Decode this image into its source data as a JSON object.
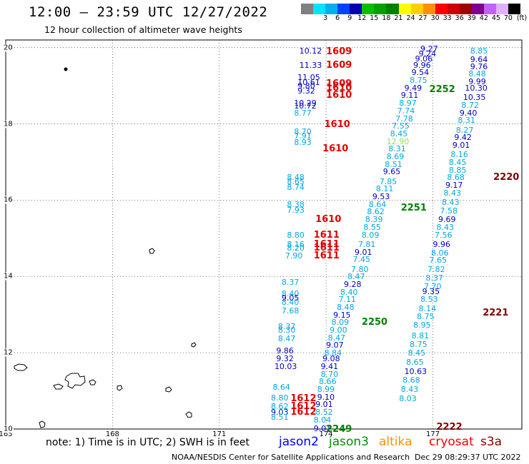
{
  "header": {
    "title": "12:00 – 23:59 UTC 12/27/2022",
    "subtitle": "12 hour collection of altimeter wave heights"
  },
  "scale": {
    "unit": "(ft)",
    "bins": [
      {
        "label": "",
        "color": "#808080"
      },
      {
        "label": "3",
        "color": "#00e5ff"
      },
      {
        "label": "6",
        "color": "#00b0e8"
      },
      {
        "label": "9",
        "color": "#0040ff"
      },
      {
        "label": "12",
        "color": "#0000b0"
      },
      {
        "label": "15",
        "color": "#00c000"
      },
      {
        "label": "18",
        "color": "#00a000"
      },
      {
        "label": "21",
        "color": "#008000"
      },
      {
        "label": "24",
        "color": "#ffff00"
      },
      {
        "label": "27",
        "color": "#ffd000"
      },
      {
        "label": "30",
        "color": "#ff9000"
      },
      {
        "label": "33",
        "color": "#ff0000"
      },
      {
        "label": "36",
        "color": "#d00000"
      },
      {
        "label": "39",
        "color": "#a00000"
      },
      {
        "label": "42",
        "color": "#800090"
      },
      {
        "label": "45",
        "color": "#c060ff"
      },
      {
        "label": "70",
        "color": "#e0b0ff"
      },
      {
        "label": "",
        "color": "#000000"
      }
    ]
  },
  "axes": {
    "lon_ticks": [
      "165",
      "168",
      "171",
      "174",
      "177"
    ],
    "lat_ticks": [
      "20",
      "18",
      "16",
      "14",
      "12",
      "10"
    ]
  },
  "footer": {
    "note": "note: 1) Time is in UTC; 2) SWH is in feet",
    "credit": "NOAA/NESDIS Center for Satellite Applications and Research",
    "stamp": "Dec 29 08:29:37 UTC 2022"
  },
  "satellites": [
    {
      "name": "jason2",
      "color": "#0000ff"
    },
    {
      "name": "jason3",
      "color": "#009000"
    },
    {
      "name": "altika",
      "color": "#ff9000"
    },
    {
      "name": "cryosat",
      "color": "#ff0000"
    },
    {
      "name": "s3a",
      "color": "#8b0000"
    }
  ],
  "track_labels": [
    {
      "text": "1609",
      "color": "#e00000",
      "lon": 174.0,
      "lat": 19.9
    },
    {
      "text": "1609",
      "color": "#e00000",
      "lon": 174.0,
      "lat": 19.55
    },
    {
      "text": "1609",
      "color": "#e00000",
      "lon": 174.0,
      "lat": 19.05
    },
    {
      "text": "1610",
      "color": "#e00000",
      "lon": 174.0,
      "lat": 18.95
    },
    {
      "text": "1610",
      "color": "#e00000",
      "lon": 174.0,
      "lat": 18.75
    },
    {
      "text": "1610",
      "color": "#e00000",
      "lon": 173.95,
      "lat": 18.0
    },
    {
      "text": "1610",
      "color": "#e00000",
      "lon": 173.9,
      "lat": 17.35
    },
    {
      "text": "1610",
      "color": "#e00000",
      "lon": 173.7,
      "lat": 15.5
    },
    {
      "text": "1611",
      "color": "#e00000",
      "lon": 173.65,
      "lat": 15.1
    },
    {
      "text": "1611",
      "color": "#e00000",
      "lon": 173.65,
      "lat": 14.85
    },
    {
      "text": "1611",
      "color": "#e00000",
      "lon": 173.65,
      "lat": 14.75
    },
    {
      "text": "1611",
      "color": "#e00000",
      "lon": 173.65,
      "lat": 14.55
    },
    {
      "text": "1612",
      "color": "#e00000",
      "lon": 173.0,
      "lat": 10.8
    },
    {
      "text": "1612",
      "color": "#e00000",
      "lon": 173.0,
      "lat": 10.6
    },
    {
      "text": "1612",
      "color": "#e00000",
      "lon": 173.0,
      "lat": 10.45
    },
    {
      "text": "2252",
      "color": "#008000",
      "lon": 176.9,
      "lat": 18.9
    },
    {
      "text": "2251",
      "color": "#008000",
      "lon": 176.1,
      "lat": 15.8
    },
    {
      "text": "2250",
      "color": "#008000",
      "lon": 175.0,
      "lat": 12.8
    },
    {
      "text": "2249",
      "color": "#008000",
      "lon": 174.0,
      "lat": 10.0
    },
    {
      "text": "2220",
      "color": "#800000",
      "lon": 178.7,
      "lat": 16.6
    },
    {
      "text": "2221",
      "color": "#800000",
      "lon": 178.4,
      "lat": 13.05
    },
    {
      "text": "2222",
      "color": "#800000",
      "lon": 177.1,
      "lat": 10.05
    }
  ],
  "observations": [
    {
      "v": "10.12",
      "c": "#0000c0",
      "lon": 173.25,
      "lat": 19.92
    },
    {
      "v": "11.33",
      "c": "#0000c0",
      "lon": 173.25,
      "lat": 19.55
    },
    {
      "v": "11.05",
      "c": "#0000c0",
      "lon": 173.2,
      "lat": 19.22
    },
    {
      "v": "10.61",
      "c": "#0000c0",
      "lon": 173.2,
      "lat": 19.1
    },
    {
      "v": "9.80",
      "c": "#0000c0",
      "lon": 173.2,
      "lat": 19.0
    },
    {
      "v": "9.32",
      "c": "#0000c0",
      "lon": 173.2,
      "lat": 18.87
    },
    {
      "v": "10.29",
      "c": "#0000c0",
      "lon": 173.1,
      "lat": 18.55
    },
    {
      "v": "10.72",
      "c": "#0000c0",
      "lon": 173.1,
      "lat": 18.47
    },
    {
      "v": "8.77",
      "c": "#00a8e0",
      "lon": 173.1,
      "lat": 18.3
    },
    {
      "v": "8.70",
      "c": "#00a8e0",
      "lon": 173.1,
      "lat": 17.8
    },
    {
      "v": "7.91",
      "c": "#00a8e0",
      "lon": 173.1,
      "lat": 17.7
    },
    {
      "v": "8.93",
      "c": "#00a8e0",
      "lon": 173.1,
      "lat": 17.52
    },
    {
      "v": "8.48",
      "c": "#00a8e0",
      "lon": 172.9,
      "lat": 16.6
    },
    {
      "v": "8.65",
      "c": "#00a8e0",
      "lon": 172.9,
      "lat": 16.5
    },
    {
      "v": "8.74",
      "c": "#00a8e0",
      "lon": 172.9,
      "lat": 16.35
    },
    {
      "v": "8.38",
      "c": "#00a8e0",
      "lon": 172.9,
      "lat": 15.9
    },
    {
      "v": "7.93",
      "c": "#00a8e0",
      "lon": 172.9,
      "lat": 15.75
    },
    {
      "v": "8.80",
      "c": "#00a8e0",
      "lon": 172.9,
      "lat": 15.1
    },
    {
      "v": "8.16",
      "c": "#00a8e0",
      "lon": 172.9,
      "lat": 14.85
    },
    {
      "v": "8.20",
      "c": "#00a8e0",
      "lon": 172.9,
      "lat": 14.75
    },
    {
      "v": "7.90",
      "c": "#00a8e0",
      "lon": 172.85,
      "lat": 14.55
    },
    {
      "v": "8.37",
      "c": "#00a8e0",
      "lon": 172.75,
      "lat": 13.85
    },
    {
      "v": "8.40",
      "c": "#00a8e0",
      "lon": 172.75,
      "lat": 13.55
    },
    {
      "v": "9.05",
      "c": "#0000c0",
      "lon": 172.75,
      "lat": 13.45
    },
    {
      "v": "8.40",
      "c": "#00a8e0",
      "lon": 172.75,
      "lat": 13.33
    },
    {
      "v": "7.68",
      "c": "#00a8e0",
      "lon": 172.75,
      "lat": 13.1
    },
    {
      "v": "8.37",
      "c": "#00a8e0",
      "lon": 172.65,
      "lat": 12.7
    },
    {
      "v": "8.30",
      "c": "#00a8e0",
      "lon": 172.65,
      "lat": 12.6
    },
    {
      "v": "8.47",
      "c": "#00a8e0",
      "lon": 172.65,
      "lat": 12.38
    },
    {
      "v": "9.86",
      "c": "#0000c0",
      "lon": 172.6,
      "lat": 12.05
    },
    {
      "v": "9.32",
      "c": "#0000c0",
      "lon": 172.6,
      "lat": 11.85
    },
    {
      "v": "10.03",
      "c": "#0000c0",
      "lon": 172.55,
      "lat": 11.65
    },
    {
      "v": "8.64",
      "c": "#00a8e0",
      "lon": 172.5,
      "lat": 11.1
    },
    {
      "v": "8.80",
      "c": "#00a8e0",
      "lon": 172.45,
      "lat": 10.82
    },
    {
      "v": "8.62",
      "c": "#00a8e0",
      "lon": 172.45,
      "lat": 10.6
    },
    {
      "v": "9.03",
      "c": "#0000c0",
      "lon": 172.45,
      "lat": 10.45
    },
    {
      "v": "8.51",
      "c": "#00a8e0",
      "lon": 172.45,
      "lat": 10.32
    },
    {
      "v": "9.01",
      "c": "#0000c0",
      "lon": 173.65,
      "lat": 10.02
    },
    {
      "v": "8.04",
      "c": "#00a8e0",
      "lon": 173.65,
      "lat": 10.25
    },
    {
      "v": "8.52",
      "c": "#00a8e0",
      "lon": 173.7,
      "lat": 10.45
    },
    {
      "v": "9.01",
      "c": "#0000c0",
      "lon": 173.7,
      "lat": 10.65
    },
    {
      "v": "9.10",
      "c": "#0000c0",
      "lon": 173.75,
      "lat": 10.85
    },
    {
      "v": "8.99",
      "c": "#00a8e0",
      "lon": 173.75,
      "lat": 11.05
    },
    {
      "v": "8.66",
      "c": "#00a8e0",
      "lon": 173.8,
      "lat": 11.25
    },
    {
      "v": "8.70",
      "c": "#00a8e0",
      "lon": 173.85,
      "lat": 11.45
    },
    {
      "v": "9.41",
      "c": "#0000c0",
      "lon": 173.85,
      "lat": 11.65
    },
    {
      "v": "9.08",
      "c": "#0000c0",
      "lon": 173.9,
      "lat": 11.85
    },
    {
      "v": "8.84",
      "c": "#00a8e0",
      "lon": 173.95,
      "lat": 12.0
    },
    {
      "v": "9.07",
      "c": "#0000c0",
      "lon": 174.0,
      "lat": 12.2
    },
    {
      "v": "8.47",
      "c": "#00a8e0",
      "lon": 174.05,
      "lat": 12.4
    },
    {
      "v": "9.00",
      "c": "#00a8e0",
      "lon": 174.1,
      "lat": 12.6
    },
    {
      "v": "8.09",
      "c": "#00a8e0",
      "lon": 174.15,
      "lat": 12.8
    },
    {
      "v": "9.15",
      "c": "#0000c0",
      "lon": 174.2,
      "lat": 13.0
    },
    {
      "v": "8.48",
      "c": "#00a8e0",
      "lon": 174.3,
      "lat": 13.2
    },
    {
      "v": "7.11",
      "c": "#00a8e0",
      "lon": 174.35,
      "lat": 13.4
    },
    {
      "v": "8.40",
      "c": "#00a8e0",
      "lon": 174.4,
      "lat": 13.6
    },
    {
      "v": "9.28",
      "c": "#0000c0",
      "lon": 174.5,
      "lat": 13.8
    },
    {
      "v": "8.47",
      "c": "#00a8e0",
      "lon": 174.6,
      "lat": 14.0
    },
    {
      "v": "7.80",
      "c": "#00a8e0",
      "lon": 174.7,
      "lat": 14.2
    },
    {
      "v": "7.45",
      "c": "#00a8e0",
      "lon": 174.75,
      "lat": 14.45
    },
    {
      "v": "9.01",
      "c": "#0000c0",
      "lon": 174.8,
      "lat": 14.65
    },
    {
      "v": "7.81",
      "c": "#00a8e0",
      "lon": 174.9,
      "lat": 14.85
    },
    {
      "v": "8.09",
      "c": "#00a8e0",
      "lon": 175.0,
      "lat": 15.1
    },
    {
      "v": "8.55",
      "c": "#00a8e0",
      "lon": 175.05,
      "lat": 15.3
    },
    {
      "v": "8.39",
      "c": "#00a8e0",
      "lon": 175.1,
      "lat": 15.5
    },
    {
      "v": "8.62",
      "c": "#00a8e0",
      "lon": 175.15,
      "lat": 15.7
    },
    {
      "v": "8.64",
      "c": "#00a8e0",
      "lon": 175.2,
      "lat": 15.9
    },
    {
      "v": "9.53",
      "c": "#0000c0",
      "lon": 175.3,
      "lat": 16.1
    },
    {
      "v": "8.11",
      "c": "#00a8e0",
      "lon": 175.4,
      "lat": 16.3
    },
    {
      "v": "7.85",
      "c": "#00a8e0",
      "lon": 175.5,
      "lat": 16.5
    },
    {
      "v": "9.65",
      "c": "#0000c0",
      "lon": 175.6,
      "lat": 16.75
    },
    {
      "v": "8.51",
      "c": "#00a8e0",
      "lon": 175.65,
      "lat": 16.95
    },
    {
      "v": "8.69",
      "c": "#00a8e0",
      "lon": 175.7,
      "lat": 17.15
    },
    {
      "v": "8.31",
      "c": "#00a8e0",
      "lon": 175.75,
      "lat": 17.35
    },
    {
      "v": "12.90",
      "c": "#90e060",
      "lon": 175.7,
      "lat": 17.55
    },
    {
      "v": "8.45",
      "c": "#00a8e0",
      "lon": 175.8,
      "lat": 17.75
    },
    {
      "v": "7.55",
      "c": "#00a8e0",
      "lon": 175.85,
      "lat": 17.95
    },
    {
      "v": "7.78",
      "c": "#00a8e0",
      "lon": 175.95,
      "lat": 18.15
    },
    {
      "v": "7.74",
      "c": "#00a8e0",
      "lon": 176.0,
      "lat": 18.35
    },
    {
      "v": "8.97",
      "c": "#00a8e0",
      "lon": 176.05,
      "lat": 18.55
    },
    {
      "v": "9.11",
      "c": "#0000c0",
      "lon": 176.1,
      "lat": 18.75
    },
    {
      "v": "9.49",
      "c": "#0000c0",
      "lon": 176.2,
      "lat": 18.95
    },
    {
      "v": "8.75",
      "c": "#00a8e0",
      "lon": 176.35,
      "lat": 19.15
    },
    {
      "v": "9.54",
      "c": "#0000c0",
      "lon": 176.4,
      "lat": 19.35
    },
    {
      "v": "9.96",
      "c": "#0000c0",
      "lon": 176.45,
      "lat": 19.55
    },
    {
      "v": "9.06",
      "c": "#0000c0",
      "lon": 176.5,
      "lat": 19.72
    },
    {
      "v": "9.24",
      "c": "#0000c0",
      "lon": 176.6,
      "lat": 19.85
    },
    {
      "v": "9.27",
      "c": "#0000c0",
      "lon": 176.65,
      "lat": 19.97
    },
    {
      "v": "8.85",
      "c": "#00a8e0",
      "lon": 178.05,
      "lat": 19.92
    },
    {
      "v": "9.64",
      "c": "#0000c0",
      "lon": 178.05,
      "lat": 19.7
    },
    {
      "v": "9.76",
      "c": "#0000c0",
      "lon": 178.05,
      "lat": 19.5
    },
    {
      "v": "8.48",
      "c": "#00a8e0",
      "lon": 178.0,
      "lat": 19.32
    },
    {
      "v": "9.99",
      "c": "#0000c0",
      "lon": 178.0,
      "lat": 19.12
    },
    {
      "v": "10.30",
      "c": "#0000c0",
      "lon": 177.9,
      "lat": 18.95
    },
    {
      "v": "10.35",
      "c": "#0000c0",
      "lon": 177.85,
      "lat": 18.7
    },
    {
      "v": "8.72",
      "c": "#00a8e0",
      "lon": 177.8,
      "lat": 18.5
    },
    {
      "v": "9.40",
      "c": "#0000c0",
      "lon": 177.75,
      "lat": 18.3
    },
    {
      "v": "8.31",
      "c": "#00a8e0",
      "lon": 177.7,
      "lat": 18.1
    },
    {
      "v": "8.27",
      "c": "#00a8e0",
      "lon": 177.65,
      "lat": 17.85
    },
    {
      "v": "9.42",
      "c": "#0000c0",
      "lon": 177.6,
      "lat": 17.65
    },
    {
      "v": "9.01",
      "c": "#0000c0",
      "lon": 177.55,
      "lat": 17.45
    },
    {
      "v": "8.16",
      "c": "#00a8e0",
      "lon": 177.5,
      "lat": 17.2
    },
    {
      "v": "8.45",
      "c": "#00a8e0",
      "lon": 177.45,
      "lat": 17.0
    },
    {
      "v": "8.85",
      "c": "#00a8e0",
      "lon": 177.45,
      "lat": 16.8
    },
    {
      "v": "8.68",
      "c": "#00a8e0",
      "lon": 177.4,
      "lat": 16.6
    },
    {
      "v": "9.17",
      "c": "#0000c0",
      "lon": 177.35,
      "lat": 16.4
    },
    {
      "v": "8.43",
      "c": "#00a8e0",
      "lon": 177.3,
      "lat": 16.2
    },
    {
      "v": "8.43",
      "c": "#00a8e0",
      "lon": 177.25,
      "lat": 15.95
    },
    {
      "v": "7.58",
      "c": "#00a8e0",
      "lon": 177.2,
      "lat": 15.72
    },
    {
      "v": "9.69",
      "c": "#0000c0",
      "lon": 177.15,
      "lat": 15.5
    },
    {
      "v": "8.43",
      "c": "#00a8e0",
      "lon": 177.1,
      "lat": 15.3
    },
    {
      "v": "7.56",
      "c": "#00a8e0",
      "lon": 177.05,
      "lat": 15.1
    },
    {
      "v": "9.96",
      "c": "#0000c0",
      "lon": 177.0,
      "lat": 14.85
    },
    {
      "v": "8.06",
      "c": "#00a8e0",
      "lon": 176.95,
      "lat": 14.63
    },
    {
      "v": "7.65",
      "c": "#00a8e0",
      "lon": 176.9,
      "lat": 14.43
    },
    {
      "v": "7.82",
      "c": "#00a8e0",
      "lon": 176.85,
      "lat": 14.2
    },
    {
      "v": "8.37",
      "c": "#00a8e0",
      "lon": 176.8,
      "lat": 13.97
    },
    {
      "v": "7.70",
      "c": "#00a8e0",
      "lon": 176.75,
      "lat": 13.75
    },
    {
      "v": "9.35",
      "c": "#0000c0",
      "lon": 176.7,
      "lat": 13.62
    },
    {
      "v": "8.53",
      "c": "#00a8e0",
      "lon": 176.65,
      "lat": 13.4
    },
    {
      "v": "8.14",
      "c": "#00a8e0",
      "lon": 176.6,
      "lat": 13.17
    },
    {
      "v": "8.75",
      "c": "#00a8e0",
      "lon": 176.55,
      "lat": 12.95
    },
    {
      "v": "8.95",
      "c": "#00a8e0",
      "lon": 176.45,
      "lat": 12.73
    },
    {
      "v": "8.81",
      "c": "#00a8e0",
      "lon": 176.4,
      "lat": 12.45
    },
    {
      "v": "8.75",
      "c": "#00a8e0",
      "lon": 176.35,
      "lat": 12.22
    },
    {
      "v": "8.45",
      "c": "#00a8e0",
      "lon": 176.3,
      "lat": 12.0
    },
    {
      "v": "8.65",
      "c": "#00a8e0",
      "lon": 176.25,
      "lat": 11.75
    },
    {
      "v": "10.63",
      "c": "#0000c0",
      "lon": 176.2,
      "lat": 11.52
    },
    {
      "v": "8.68",
      "c": "#00a8e0",
      "lon": 176.15,
      "lat": 11.3
    },
    {
      "v": "8.43",
      "c": "#00a8e0",
      "lon": 176.1,
      "lat": 11.05
    },
    {
      "v": "8.03",
      "c": "#00a8e0",
      "lon": 176.05,
      "lat": 10.8
    }
  ]
}
